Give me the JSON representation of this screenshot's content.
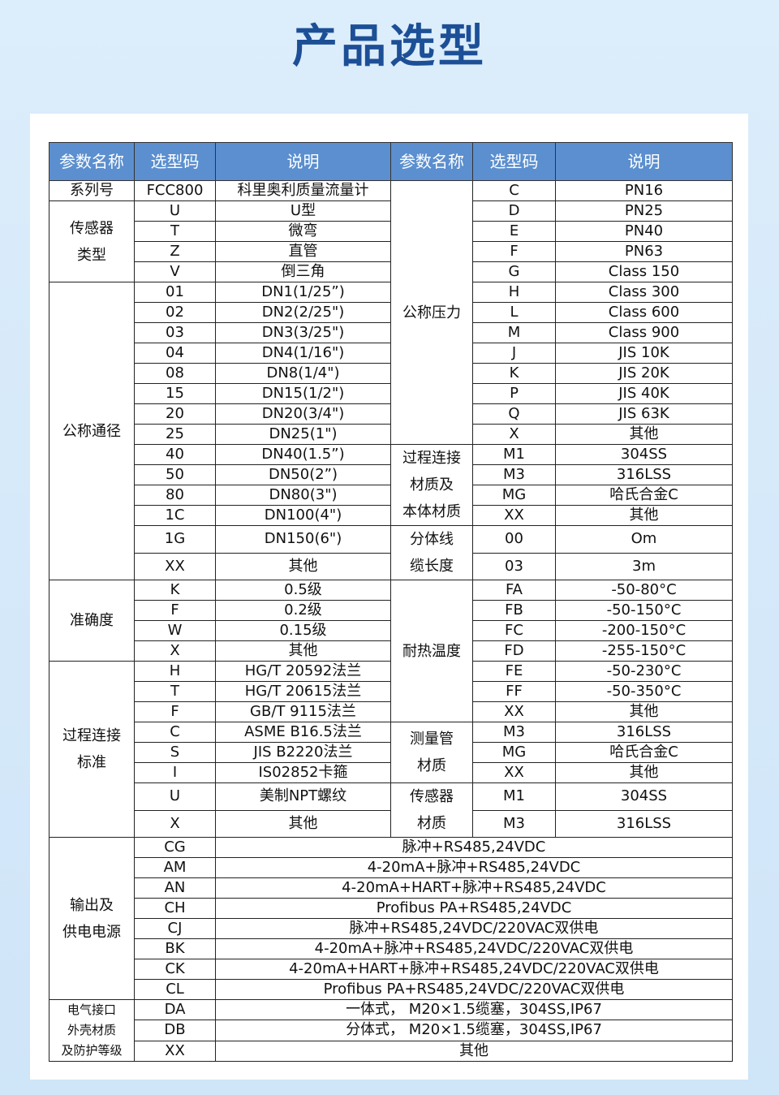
{
  "title": "产品选型",
  "headers": [
    "参数名称",
    "选型码",
    "说明",
    "参数名称",
    "选型码",
    "说明"
  ],
  "colors": {
    "header_bg": "#5b8fcf",
    "title": "#1c4f96"
  },
  "left_groups": [
    {
      "name": "系列号",
      "rows": [
        [
          "FCC800",
          "科里奥利质量流量计"
        ]
      ]
    },
    {
      "name": "传感器\n类型",
      "rows": [
        [
          "U",
          "U型"
        ],
        [
          "T",
          "微弯"
        ],
        [
          "Z",
          "直管"
        ],
        [
          "V",
          "倒三角"
        ]
      ]
    },
    {
      "name": "公称通径",
      "rows": [
        [
          "01",
          "DN1(1/25”)"
        ],
        [
          "02",
          "DN2(2/25\")"
        ],
        [
          "03",
          "DN3(3/25\")"
        ],
        [
          "04",
          "DN4(1/16\")"
        ],
        [
          "08",
          "DN8(1/4\")"
        ],
        [
          "15",
          "DN15(1/2\")"
        ],
        [
          "20",
          "DN20(3/4\")"
        ],
        [
          "25",
          "DN25(1\")"
        ],
        [
          "40",
          "DN40(1.5”)"
        ],
        [
          "50",
          "DN50(2”)"
        ],
        [
          "80",
          "DN80(3\")"
        ],
        [
          "1C",
          "DN100(4\")"
        ],
        [
          "1G",
          "DN150(6\")"
        ],
        [
          "XX",
          "其他"
        ]
      ]
    },
    {
      "name": "准确度",
      "rows": [
        [
          "K",
          "0.5级"
        ],
        [
          "F",
          "0.2级"
        ],
        [
          "W",
          "0.15级"
        ],
        [
          "X",
          "其他"
        ]
      ]
    },
    {
      "name": "过程连接\n标准",
      "rows": [
        [
          "H",
          "HG/T 20592法兰"
        ],
        [
          "T",
          "HG/T 20615法兰"
        ],
        [
          "F",
          "GB/T 9115法兰"
        ],
        [
          "C",
          "ASME B16.5法兰"
        ],
        [
          "S",
          "JIS B2220法兰"
        ],
        [
          "I",
          "IS02852卡箍"
        ],
        [
          "U",
          "美制NPT螺纹"
        ],
        [
          "X",
          "其他"
        ]
      ]
    }
  ],
  "right_groups": [
    {
      "name": "公称压力",
      "rows": [
        [
          "C",
          "PN16"
        ],
        [
          "D",
          "PN25"
        ],
        [
          "E",
          "PN40"
        ],
        [
          "F",
          "PN63"
        ],
        [
          "G",
          "Class 150"
        ],
        [
          "H",
          "Class 300"
        ],
        [
          "L",
          "Class 600"
        ],
        [
          "M",
          "Class 900"
        ],
        [
          "J",
          "JIS 10K"
        ],
        [
          "K",
          "JIS 20K"
        ],
        [
          "P",
          "JIS 40K"
        ],
        [
          "Q",
          "JIS 63K"
        ],
        [
          "X",
          "其他"
        ]
      ]
    },
    {
      "name": "过程连接\n材质及\n本体材质",
      "rows": [
        [
          "M1",
          "304SS"
        ],
        [
          "M3",
          "316LSS"
        ],
        [
          "MG",
          "哈氏合金C"
        ],
        [
          "XX",
          "其他"
        ]
      ]
    },
    {
      "name": "分体线\n缆长度",
      "rows": [
        [
          "00",
          "Om"
        ],
        [
          "03",
          "3m"
        ]
      ]
    },
    {
      "name": "耐热温度",
      "rows": [
        [
          "FA",
          "-50-80°C"
        ],
        [
          "FB",
          "-50-150°C"
        ],
        [
          "FC",
          "-200-150°C"
        ],
        [
          "FD",
          "-255-150°C"
        ],
        [
          "FE",
          "-50-230°C"
        ],
        [
          "FF",
          "-50-350°C"
        ],
        [
          "XX",
          "其他"
        ]
      ]
    },
    {
      "name": "测量管\n材质",
      "rows": [
        [
          "M3",
          "316LSS"
        ],
        [
          "MG",
          "哈氏合金C"
        ],
        [
          "XX",
          "其他"
        ]
      ]
    },
    {
      "name": "传感器\n材质",
      "rows": [
        [
          "M1",
          "304SS"
        ],
        [
          "M3",
          "316LSS"
        ]
      ]
    }
  ],
  "bottom_groups": [
    {
      "name": "输出及\n供电电源",
      "rows": [
        [
          "CG",
          "脉冲+RS485,24VDC"
        ],
        [
          "AM",
          "4-20mA+脉冲+RS485,24VDC"
        ],
        [
          "AN",
          "4-20mA+HART+脉冲+RS485,24VDC"
        ],
        [
          "CH",
          "Profibus PA+RS485,24VDC"
        ],
        [
          "CJ",
          "脉冲+RS485,24VDC/220VAC双供电"
        ],
        [
          "BK",
          "4-20mA+脉冲+RS485,24VDC/220VAC双供电"
        ],
        [
          "CK",
          "4-20mA+HART+脉冲+RS485,24VDC/220VAC双供电"
        ],
        [
          "CL",
          "Profibus PA+RS485,24VDC/220VAC双供电"
        ]
      ]
    },
    {
      "name": "电气接口\n外壳材质\n及防护等级",
      "small": true,
      "rows": [
        [
          "DA",
          "一体式， M20×1.5缆塞，304SS,IP67"
        ],
        [
          "DB",
          "分体式， M20×1.5缆塞，304SS,IP67"
        ],
        [
          "XX",
          "其他"
        ]
      ]
    }
  ]
}
